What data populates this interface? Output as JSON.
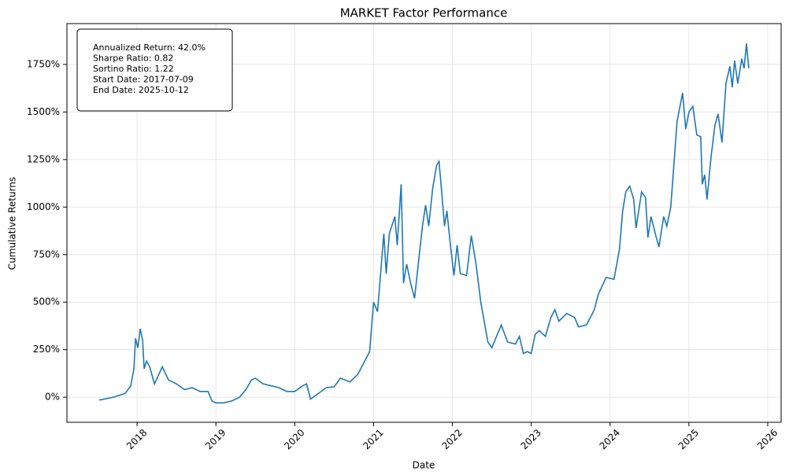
{
  "chart_data": {
    "type": "line",
    "title": "MARKET Factor Performance",
    "xlabel": "Date",
    "ylabel": "Cumulative Returns",
    "annotation": [
      "Annualized Return: 42.0%",
      "Sharpe Ratio: 0.82",
      "Sortino Ratio: 1.22",
      "Start Date: 2017-07-09",
      "End Date: 2025-10-12"
    ],
    "x": [
      2017.52,
      2017.7,
      2017.85,
      2017.92,
      2017.96,
      2017.98,
      2018.01,
      2018.04,
      2018.07,
      2018.09,
      2018.12,
      2018.16,
      2018.22,
      2018.32,
      2018.4,
      2018.5,
      2018.6,
      2018.7,
      2018.8,
      2018.9,
      2018.95,
      2019.0,
      2019.1,
      2019.2,
      2019.3,
      2019.38,
      2019.45,
      2019.5,
      2019.6,
      2019.7,
      2019.8,
      2019.9,
      2020.0,
      2020.1,
      2020.15,
      2020.2,
      2020.3,
      2020.4,
      2020.5,
      2020.58,
      2020.7,
      2020.8,
      2020.9,
      2020.95,
      2021.0,
      2021.05,
      2021.13,
      2021.16,
      2021.2,
      2021.27,
      2021.3,
      2021.35,
      2021.38,
      2021.42,
      2021.47,
      2021.52,
      2021.58,
      2021.62,
      2021.66,
      2021.7,
      2021.75,
      2021.8,
      2021.83,
      2021.86,
      2021.9,
      2021.93,
      2021.98,
      2022.02,
      2022.06,
      2022.1,
      2022.18,
      2022.24,
      2022.3,
      2022.36,
      2022.45,
      2022.5,
      2022.56,
      2022.62,
      2022.7,
      2022.8,
      2022.85,
      2022.9,
      2022.95,
      2023.0,
      2023.05,
      2023.1,
      2023.18,
      2023.25,
      2023.3,
      2023.35,
      2023.45,
      2023.55,
      2023.6,
      2023.7,
      2023.8,
      2023.85,
      2023.95,
      2024.05,
      2024.12,
      2024.16,
      2024.2,
      2024.25,
      2024.3,
      2024.33,
      2024.4,
      2024.45,
      2024.48,
      2024.52,
      2024.58,
      2024.62,
      2024.68,
      2024.72,
      2024.77,
      2024.85,
      2024.92,
      2024.96,
      2025.0,
      2025.05,
      2025.1,
      2025.15,
      2025.17,
      2025.2,
      2025.23,
      2025.28,
      2025.33,
      2025.37,
      2025.42,
      2025.47,
      2025.52,
      2025.55,
      2025.58,
      2025.62,
      2025.67,
      2025.7,
      2025.73,
      2025.76
    ],
    "series": [
      {
        "name": "MARKET",
        "color": "#1f77b4",
        "values": [
          -15,
          0,
          20,
          60,
          150,
          310,
          260,
          360,
          300,
          150,
          190,
          160,
          70,
          160,
          90,
          70,
          40,
          50,
          30,
          30,
          -20,
          -30,
          -30,
          -20,
          0,
          40,
          90,
          100,
          70,
          60,
          50,
          30,
          30,
          60,
          70,
          -10,
          20,
          50,
          55,
          100,
          80,
          120,
          200,
          240,
          500,
          450,
          860,
          650,
          860,
          950,
          800,
          1120,
          600,
          700,
          600,
          520,
          750,
          900,
          1010,
          900,
          1100,
          1220,
          1240,
          1100,
          900,
          980,
          780,
          640,
          800,
          650,
          640,
          850,
          700,
          500,
          290,
          260,
          320,
          380,
          290,
          280,
          320,
          230,
          240,
          230,
          330,
          350,
          320,
          420,
          460,
          400,
          440,
          420,
          370,
          380,
          460,
          540,
          630,
          620,
          780,
          980,
          1080,
          1110,
          1040,
          890,
          1080,
          1050,
          840,
          950,
          850,
          790,
          950,
          900,
          1000,
          1450,
          1600,
          1410,
          1500,
          1530,
          1380,
          1370,
          1120,
          1170,
          1040,
          1260,
          1430,
          1490,
          1340,
          1650,
          1740,
          1630,
          1770,
          1650,
          1780,
          1730,
          1860,
          1730
        ]
      }
    ],
    "xlim": [
      2017.11,
      2026.17
    ],
    "xticks": [
      2018,
      2019,
      2020,
      2021,
      2022,
      2023,
      2024,
      2025,
      2026
    ],
    "ylim": [
      -132,
      1965
    ],
    "yticks": [
      {
        "value": 0,
        "label": "0%"
      },
      {
        "value": 250,
        "label": "250%"
      },
      {
        "value": 500,
        "label": "500%"
      },
      {
        "value": 750,
        "label": "750%"
      },
      {
        "value": 1000,
        "label": "1000%"
      },
      {
        "value": 1250,
        "label": "1250%"
      },
      {
        "value": 1500,
        "label": "1500%"
      },
      {
        "value": 1750,
        "label": "1750%"
      }
    ],
    "grid": true
  }
}
